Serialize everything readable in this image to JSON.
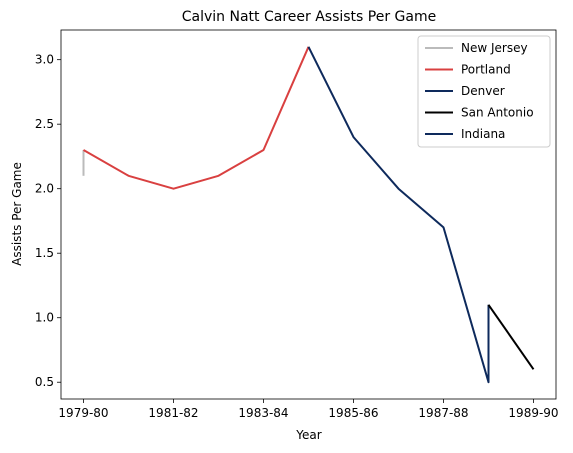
{
  "chart_data": {
    "type": "line",
    "title": "Calvin Natt Career Assists Per Game",
    "xlabel": "Year",
    "ylabel": "Assists Per Game",
    "x_tick_labels": [
      "1979-80",
      "1981-82",
      "1983-84",
      "1985-86",
      "1987-88",
      "1989-90"
    ],
    "x_tick_positions": [
      0,
      2,
      4,
      6,
      8,
      10
    ],
    "y_ticks": [
      0.5,
      1.0,
      1.5,
      2.0,
      2.5,
      3.0
    ],
    "y_tick_labels": [
      "0.5",
      "1.0",
      "1.5",
      "2.0",
      "2.5",
      "3.0"
    ],
    "xlim": [
      -0.5,
      10.5
    ],
    "ylim": [
      0.37,
      3.23
    ],
    "grid": false,
    "legend_position": "top-right",
    "series": [
      {
        "name": "New Jersey",
        "color": "#bbbbbb",
        "x": [
          0,
          0
        ],
        "values": [
          2.1,
          2.3
        ]
      },
      {
        "name": "Portland",
        "color": "#d94040",
        "x": [
          0,
          1,
          2,
          3,
          4,
          5
        ],
        "values": [
          2.3,
          2.1,
          2.0,
          2.1,
          2.3,
          3.1
        ]
      },
      {
        "name": "Denver",
        "color": "#0e2a5c",
        "x": [
          5,
          6,
          7,
          8,
          9,
          9
        ],
        "values": [
          3.1,
          2.4,
          2.0,
          1.7,
          0.5,
          1.1
        ]
      },
      {
        "name": "San Antonio",
        "color": "#000000",
        "x": [
          9,
          10
        ],
        "values": [
          1.1,
          0.6
        ]
      },
      {
        "name": "Indiana",
        "color": "#0e2a5c",
        "x": [],
        "values": []
      }
    ]
  }
}
